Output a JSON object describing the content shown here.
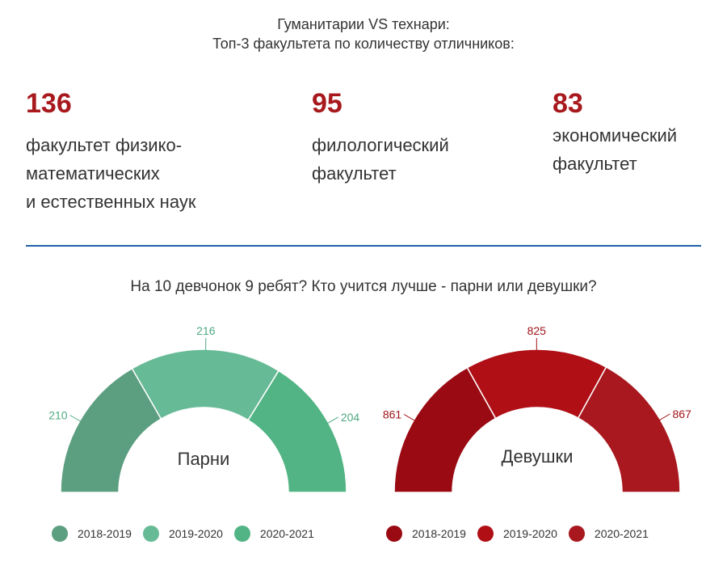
{
  "header": {
    "line1": "Гуманитарии VS технари:",
    "line2": "Топ-3 факультета по количеству отличников:"
  },
  "stats": [
    {
      "value": "136",
      "label": "факультет физико-\nматематических\nи естественных наук"
    },
    {
      "value": "95",
      "label": "филологический\nфакультет"
    },
    {
      "value": "83",
      "label": "экономический\nфакультет"
    }
  ],
  "subtitle": "На 10 девчонок 9 ребят? Кто учится лучше - парни или девушки?",
  "chart_data": [
    {
      "type": "pie",
      "shape": "semi-donut",
      "center_label": "Парни",
      "categories": [
        "2018-2019",
        "2019-2020",
        "2020-2021"
      ],
      "values": [
        210,
        216,
        204
      ],
      "colors": [
        "#5c9e80",
        "#67ba96",
        "#52b484"
      ],
      "legend": "bottom"
    },
    {
      "type": "pie",
      "shape": "semi-donut",
      "center_label": "Девушки",
      "categories": [
        "2018-2019",
        "2019-2020",
        "2020-2021"
      ],
      "values": [
        861,
        825,
        867
      ],
      "colors": [
        "#9a0a12",
        "#b00f16",
        "#a8181e"
      ],
      "legend": "bottom"
    }
  ]
}
